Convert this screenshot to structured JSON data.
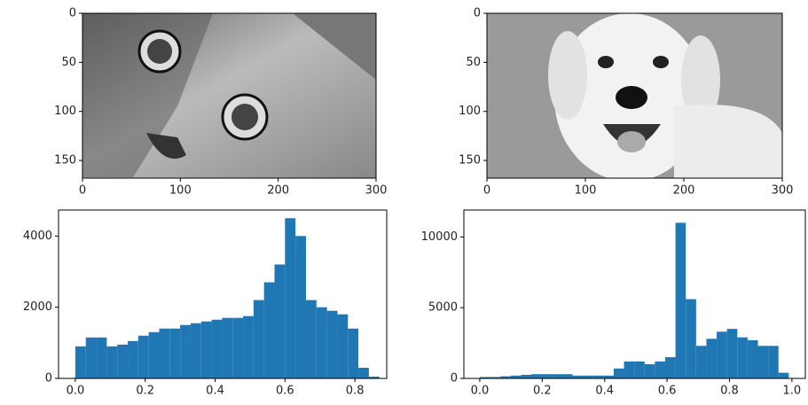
{
  "chart_data": [
    {
      "type": "image",
      "xlim": [
        0,
        300
      ],
      "ylim": [
        168,
        0
      ],
      "xticks": [
        0,
        100,
        200,
        300
      ],
      "yticks": [
        0,
        50,
        100,
        150
      ]
    },
    {
      "type": "image",
      "xlim": [
        0,
        300
      ],
      "ylim": [
        168,
        0
      ],
      "xticks": [
        0,
        100,
        200,
        300
      ],
      "yticks": [
        0,
        50,
        100,
        150
      ]
    },
    {
      "type": "histogram",
      "color": "#1f77b4",
      "bins": [
        0,
        0.03,
        0.06,
        0.09,
        0.12,
        0.15,
        0.18,
        0.21,
        0.24,
        0.27,
        0.3,
        0.33,
        0.36,
        0.39,
        0.42,
        0.45,
        0.48,
        0.51,
        0.54,
        0.57,
        0.6,
        0.63,
        0.66,
        0.69,
        0.72,
        0.75,
        0.78,
        0.81,
        0.84,
        0.87
      ],
      "values": [
        900,
        1150,
        1150,
        900,
        950,
        1050,
        1200,
        1300,
        1400,
        1400,
        1500,
        1550,
        1600,
        1650,
        1700,
        1700,
        1750,
        2200,
        2700,
        3200,
        4500,
        4000,
        2200,
        2000,
        1900,
        1800,
        1400,
        300,
        50
      ],
      "xlim": [
        -0.048,
        0.891
      ],
      "ylim": [
        0,
        4730
      ],
      "xticks": [
        {
          "value": 0,
          "label": "0.0"
        },
        {
          "value": 0.2,
          "label": "0.2"
        },
        {
          "value": 0.4,
          "label": "0.4"
        },
        {
          "value": 0.6,
          "label": "0.6"
        },
        {
          "value": 0.8,
          "label": "0.8"
        }
      ],
      "yticks": [
        0,
        2000,
        4000
      ]
    },
    {
      "type": "histogram",
      "color": "#1f77b4",
      "bins": [
        0,
        0.033,
        0.066,
        0.099,
        0.132,
        0.165,
        0.198,
        0.231,
        0.264,
        0.297,
        0.33,
        0.363,
        0.396,
        0.429,
        0.462,
        0.495,
        0.528,
        0.561,
        0.594,
        0.627,
        0.66,
        0.693,
        0.726,
        0.759,
        0.792,
        0.825,
        0.858,
        0.891,
        0.924,
        0.957,
        0.99
      ],
      "values": [
        100,
        100,
        150,
        200,
        250,
        300,
        300,
        300,
        300,
        200,
        200,
        200,
        200,
        700,
        1200,
        1200,
        1000,
        1200,
        1500,
        11000,
        5600,
        2300,
        2800,
        3300,
        3500,
        2900,
        2700,
        2300,
        2300,
        400
      ],
      "xlim": [
        -0.051,
        1.043
      ],
      "ylim": [
        0,
        11900
      ],
      "xticks": [
        {
          "value": 0,
          "label": "0.0"
        },
        {
          "value": 0.2,
          "label": "0.2"
        },
        {
          "value": 0.4,
          "label": "0.4"
        },
        {
          "value": 0.6,
          "label": "0.6"
        },
        {
          "value": 0.8,
          "label": "0.8"
        },
        {
          "value": 1,
          "label": "1.0"
        }
      ],
      "yticks": [
        0,
        5000,
        10000
      ]
    }
  ]
}
